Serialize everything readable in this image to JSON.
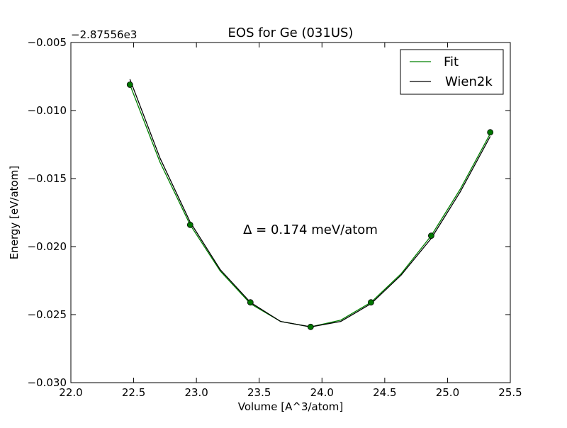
{
  "chart_data": {
    "type": "line",
    "title": "EOS for Ge (031US)",
    "xlabel": "Volume [A^3/atom]",
    "ylabel": "Energy [eV/atom]",
    "offset_text": "−2.87556e3",
    "annotation": "Δ = 0.174 meV/atom",
    "xlim": [
      22.0,
      25.5
    ],
    "ylim": [
      -0.03,
      -0.005
    ],
    "xticks": [
      22.0,
      22.5,
      23.0,
      23.5,
      24.0,
      24.5,
      25.0,
      25.5
    ],
    "xtick_labels": [
      "22.0",
      "22.5",
      "23.0",
      "23.5",
      "24.0",
      "24.5",
      "25.0",
      "25.5"
    ],
    "yticks": [
      -0.03,
      -0.025,
      -0.02,
      -0.015,
      -0.01,
      -0.005
    ],
    "ytick_labels": [
      "−0.030",
      "−0.025",
      "−0.020",
      "−0.015",
      "−0.010",
      "−0.005"
    ],
    "grid": false,
    "legend_position": "top-right",
    "points": {
      "x": [
        22.47,
        22.95,
        23.43,
        23.91,
        24.39,
        24.87,
        25.34
      ],
      "y": [
        -0.0081,
        -0.0184,
        -0.0241,
        -0.0259,
        -0.0241,
        -0.0192,
        -0.0116
      ],
      "color": "#007700"
    },
    "series": [
      {
        "name": "Fit",
        "color": "#008000",
        "x": [
          22.47,
          22.71,
          22.95,
          23.19,
          23.43,
          23.67,
          23.91,
          24.15,
          24.39,
          24.63,
          24.87,
          25.1,
          25.34
        ],
        "y": [
          -0.0081,
          -0.0138,
          -0.0184,
          -0.0218,
          -0.0242,
          -0.0255,
          -0.0259,
          -0.0254,
          -0.0241,
          -0.022,
          -0.0192,
          -0.0158,
          -0.0117
        ]
      },
      {
        "name": "Wien2k",
        "color": "#000000",
        "x": [
          22.47,
          22.71,
          22.95,
          23.19,
          23.43,
          23.67,
          23.91,
          24.15,
          24.39,
          24.63,
          24.87,
          25.1,
          25.34
        ],
        "y": [
          -0.0077,
          -0.0135,
          -0.0182,
          -0.0217,
          -0.0241,
          -0.0255,
          -0.0259,
          -0.0255,
          -0.0242,
          -0.0221,
          -0.0194,
          -0.016,
          -0.0119
        ]
      }
    ]
  }
}
